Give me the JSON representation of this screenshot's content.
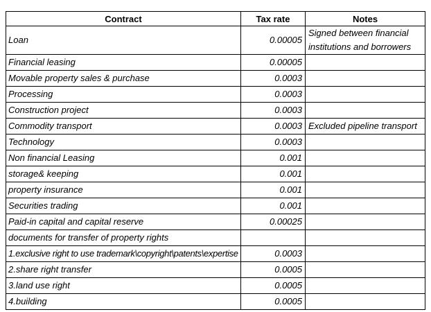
{
  "table": {
    "columns": [
      {
        "label": "Contract"
      },
      {
        "label": "Tax rate"
      },
      {
        "label": "Notes"
      }
    ],
    "rows": [
      {
        "contract": "Loan",
        "tax_rate": "0.00005",
        "notes": "Signed between financial institutions and borrowers"
      },
      {
        "contract": "Financial leasing",
        "tax_rate": "0.00005",
        "notes": ""
      },
      {
        "contract": "Movable property sales & purchase",
        "tax_rate": "0.0003",
        "notes": ""
      },
      {
        "contract": "Processing",
        "tax_rate": "0.0003",
        "notes": ""
      },
      {
        "contract": "Construction project",
        "tax_rate": "0.0003",
        "notes": ""
      },
      {
        "contract": "Commodity transport",
        "tax_rate": "0.0003",
        "notes": "Excluded pipeline transport"
      },
      {
        "contract": "Technology",
        "tax_rate": "0.0003",
        "notes": ""
      },
      {
        "contract": "Non financial Leasing",
        "tax_rate": "0.001",
        "notes": ""
      },
      {
        "contract": "storage& keeping",
        "tax_rate": "0.001",
        "notes": ""
      },
      {
        "contract": "property insurance",
        "tax_rate": "0.001",
        "notes": ""
      },
      {
        "contract": "Securities trading",
        "tax_rate": "0.001",
        "notes": ""
      },
      {
        "contract": "Paid-in capital and capital reserve",
        "tax_rate": "0.00025",
        "notes": ""
      },
      {
        "contract": "documents for transfer of property rights",
        "tax_rate": "",
        "notes": ""
      },
      {
        "contract": "1.exclusive right to use trademark\\copyright\\patents\\expertise",
        "tax_rate": "0.0003",
        "notes": ""
      },
      {
        "contract": "2.share right transfer",
        "tax_rate": "0.0005",
        "notes": ""
      },
      {
        "contract": "3.land use right",
        "tax_rate": "0.0005",
        "notes": ""
      },
      {
        "contract": "4.building",
        "tax_rate": "0.0005",
        "notes": ""
      }
    ]
  },
  "colors": {
    "border": "#000000",
    "text": "#000000",
    "background": "#ffffff"
  }
}
